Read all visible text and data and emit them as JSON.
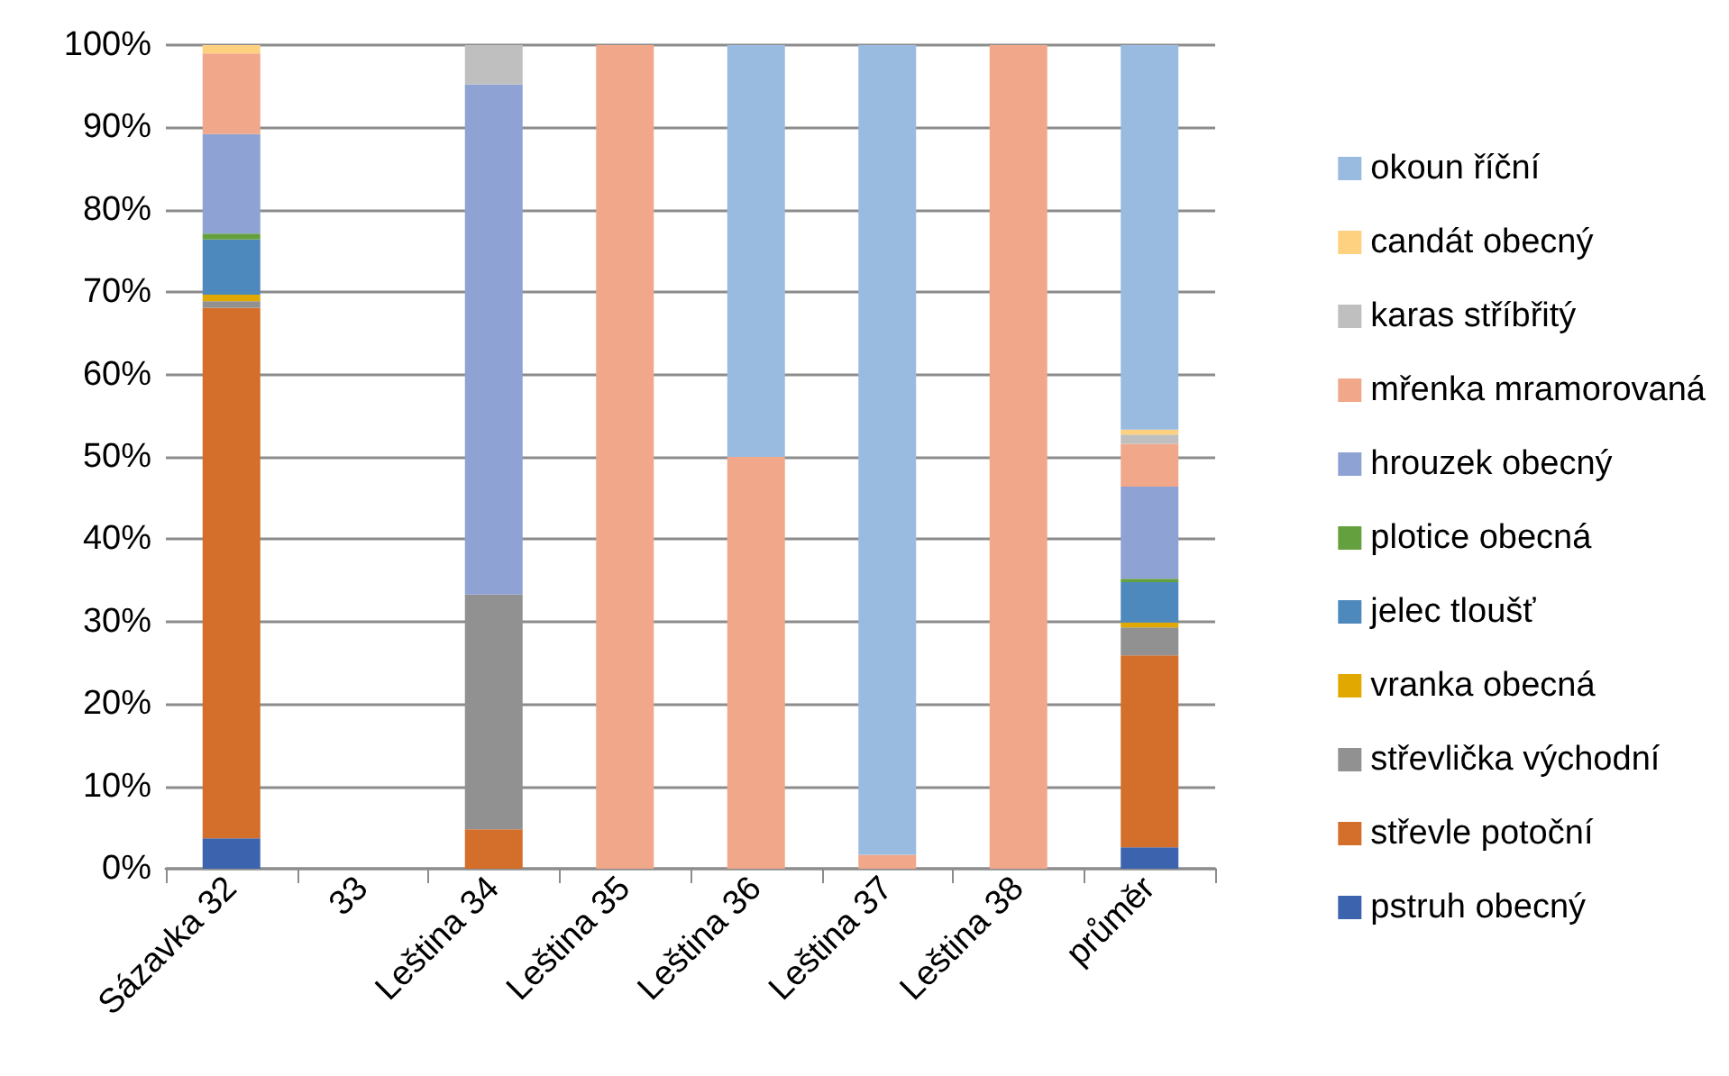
{
  "chart_data": {
    "type": "bar",
    "stacked": true,
    "categories": [
      "Sázavka 32",
      "33",
      "Leština 34",
      "Leština 35",
      "Leština 36",
      "Leština 37",
      "Leština 38",
      "průměr"
    ],
    "ylim": [
      0,
      100
    ],
    "yticks": [
      {
        "value": 0,
        "label": "0%"
      },
      {
        "value": 10,
        "label": "10%"
      },
      {
        "value": 20,
        "label": "20%"
      },
      {
        "value": 30,
        "label": "30%"
      },
      {
        "value": 40,
        "label": "40%"
      },
      {
        "value": 50,
        "label": "50%"
      },
      {
        "value": 60,
        "label": "60%"
      },
      {
        "value": 70,
        "label": "70%"
      },
      {
        "value": 80,
        "label": "80%"
      },
      {
        "value": 90,
        "label": "90%"
      },
      {
        "value": 100,
        "label": "100%"
      }
    ],
    "grid": "y",
    "legend": "right",
    "series": [
      {
        "name": "pstruh obecný",
        "color": "#3c64ae",
        "values": [
          3.7,
          null,
          null,
          null,
          null,
          null,
          null,
          2.6
        ]
      },
      {
        "name": "střevle potoční",
        "color": "#d46e2b",
        "values": [
          64.4,
          null,
          4.8,
          null,
          null,
          null,
          null,
          23.3
        ]
      },
      {
        "name": "střevlička východní",
        "color": "#919191",
        "values": [
          0.8,
          null,
          28.5,
          null,
          null,
          null,
          null,
          3.4
        ]
      },
      {
        "name": "vranka obecná",
        "color": "#e0a800",
        "values": [
          0.8,
          null,
          null,
          null,
          null,
          null,
          null,
          0.6
        ]
      },
      {
        "name": "jelec tloušť",
        "color": "#4e89be",
        "values": [
          6.7,
          null,
          null,
          null,
          null,
          null,
          null,
          4.9
        ]
      },
      {
        "name": "plotice obecná",
        "color": "#65a03f",
        "values": [
          0.7,
          null,
          null,
          null,
          null,
          null,
          null,
          0.4
        ]
      },
      {
        "name": "hrouzek obecný",
        "color": "#8fa2d4",
        "values": [
          12.1,
          null,
          61.9,
          null,
          null,
          null,
          null,
          11.2
        ]
      },
      {
        "name": "mřenka mramorovaná",
        "color": "#f1a78a",
        "values": [
          9.8,
          null,
          null,
          100,
          50,
          1.7,
          100,
          5.2
        ]
      },
      {
        "name": "karas stříbřitý",
        "color": "#bfbfbf",
        "values": [
          null,
          null,
          4.8,
          null,
          null,
          null,
          null,
          1.1
        ]
      },
      {
        "name": "candát obecný",
        "color": "#fdd180",
        "values": [
          1.0,
          null,
          null,
          null,
          null,
          null,
          null,
          0.6
        ]
      },
      {
        "name": "okoun říční",
        "color": "#9abbe0",
        "values": [
          null,
          null,
          null,
          null,
          50,
          98.3,
          null,
          46.7
        ]
      }
    ]
  }
}
